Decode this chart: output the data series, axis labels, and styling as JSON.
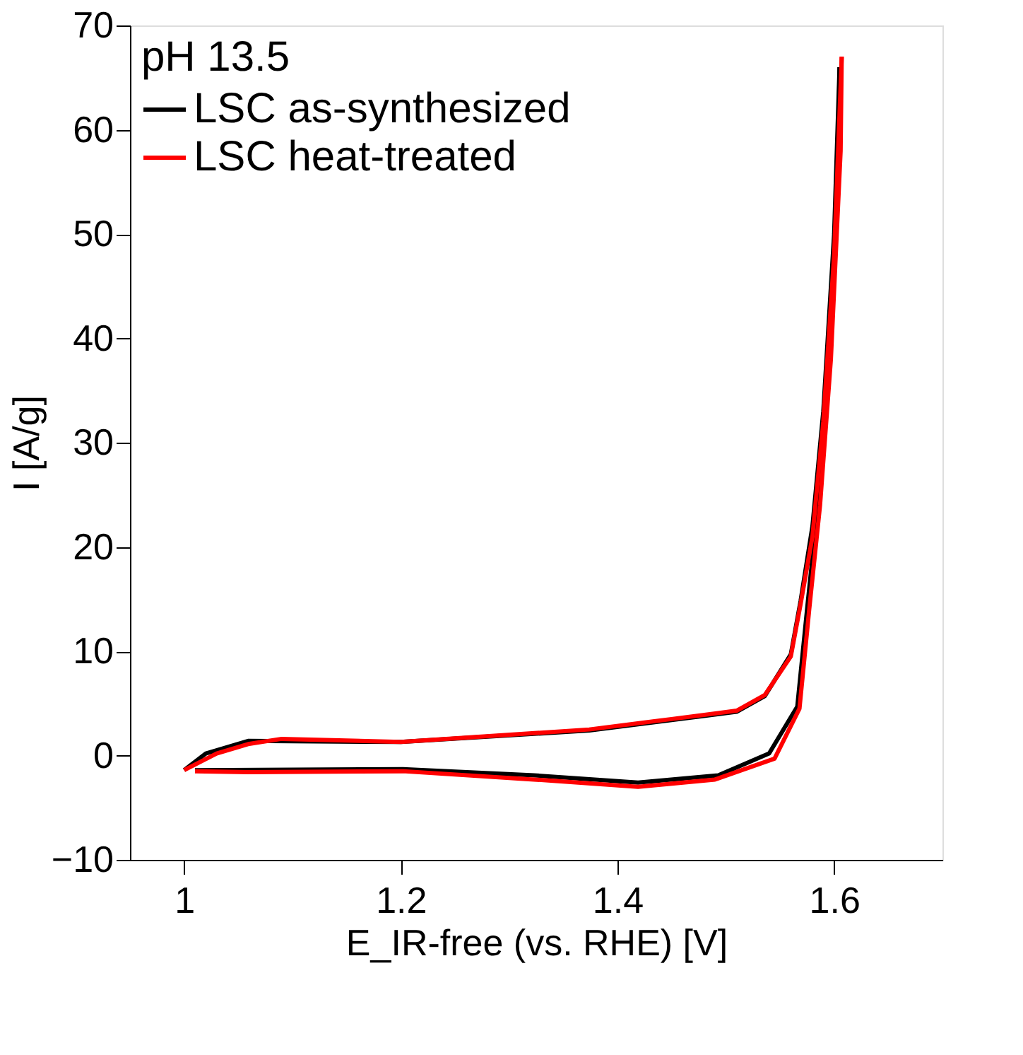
{
  "chart_data": {
    "type": "line",
    "xlabel": "E_IR-free (vs. RHE) [V]",
    "ylabel": "I [A/g]",
    "legend_title": "pH 13.5",
    "xlim": [
      0.95,
      1.7
    ],
    "xticks": [
      1,
      1.2,
      1.4,
      1.6
    ],
    "ylim": [
      -10,
      70
    ],
    "yticks": [
      -10,
      0,
      10,
      20,
      30,
      40,
      50,
      60,
      70
    ],
    "grid": false,
    "legend": "top left",
    "marker": "none",
    "line_style": "solid",
    "series": [
      {
        "name": "LSC as-synthesized",
        "color": "#000000",
        "x": [
          1.0,
          1.02,
          1.059,
          1.2,
          1.374,
          1.45,
          1.51,
          1.536,
          1.56,
          1.569,
          1.58,
          1.59,
          1.6,
          1.605
        ],
        "values": [
          -1.4,
          0.2,
          1.4,
          1.3,
          2.4,
          3.4,
          4.2,
          5.7,
          9.7,
          14.8,
          22,
          33,
          50,
          66
        ]
      },
      {
        "color": "#000000",
        "x": [
          1.605,
          1.604,
          1.595,
          1.585,
          1.575,
          1.566,
          1.54,
          1.493,
          1.419,
          1.323,
          1.202,
          1.01
        ],
        "values": [
          66,
          58,
          38,
          24,
          14,
          4.7,
          0.2,
          -1.9,
          -2.6,
          -1.9,
          -1.3,
          -1.4
        ]
      },
      {
        "name": "LSC heat-treated",
        "color": "#ff0000",
        "x": [
          1.0,
          1.03,
          1.059,
          1.09,
          1.2,
          1.374,
          1.45,
          1.51,
          1.536,
          1.56,
          1.569,
          1.58,
          1.59,
          1.6,
          1.607
        ],
        "values": [
          -1.4,
          0.2,
          1.1,
          1.6,
          1.3,
          2.5,
          3.5,
          4.3,
          5.8,
          9.5,
          14.5,
          21,
          32,
          48,
          67
        ]
      },
      {
        "color": "#ff0000",
        "x": [
          1.607,
          1.606,
          1.597,
          1.587,
          1.577,
          1.568,
          1.545,
          1.49,
          1.419,
          1.323,
          1.202,
          1.059,
          1.01
        ],
        "values": [
          67,
          58,
          38,
          24,
          14,
          4.5,
          -0.3,
          -2.3,
          -3.0,
          -2.3,
          -1.5,
          -1.6,
          -1.5
        ]
      }
    ]
  }
}
